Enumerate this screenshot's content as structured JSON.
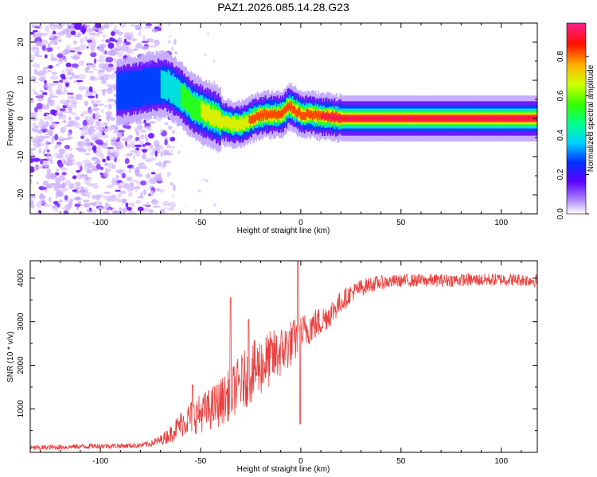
{
  "figure_title": "PAZ1.2026.085.14.28.G23",
  "colors": {
    "snr_line": "#e8413f",
    "ridge_low": "#5a00ff",
    "ridge_high": "#ff3030",
    "speckle": "#b98cff"
  },
  "chart_data": [
    {
      "type": "heatmap",
      "title": "PAZ1.2026.085.14.28.G23",
      "xlabel": "Height of straight line (km)",
      "ylabel": "Frequency (Hz)",
      "xlim": [
        -135,
        118
      ],
      "ylim": [
        -25,
        25
      ],
      "x_ticks": [
        -100,
        -50,
        0,
        50,
        100
      ],
      "y_ticks": [
        20,
        10,
        0,
        -10,
        -20
      ],
      "x_tick_labels": [
        "-100",
        "-50",
        "0",
        "50",
        "100"
      ],
      "y_tick_labels": [
        "20",
        "10",
        "0",
        "-10",
        "-20"
      ],
      "colorbar": {
        "label": "Normalized spectral amplitude",
        "range": [
          0,
          0.97
        ],
        "ticks": [
          0,
          0.2,
          0.4,
          0.6,
          0.8
        ],
        "tick_labels": [
          "0.0",
          "0.2",
          "0.4",
          "0.6",
          "0.8"
        ],
        "colormap": "rainbow (white-violet-blue-cyan-green-yellow-red-magenta)"
      },
      "ridge": {
        "description": "dominant spectral peak frequency vs height",
        "x": [
          -92,
          -85,
          -80,
          -75,
          -70,
          -66,
          -62,
          -58,
          -54,
          -50,
          -46,
          -42,
          -38,
          -34,
          -30,
          -26,
          -22,
          -18,
          -14,
          -10,
          -8,
          -6,
          -3,
          0,
          5,
          10,
          15,
          20,
          30,
          40,
          50,
          60,
          70,
          80,
          90,
          100,
          110,
          118
        ],
        "freq": [
          7,
          7.5,
          8,
          8.5,
          9,
          8.5,
          7,
          5,
          3,
          2,
          1,
          0,
          -1,
          -1.5,
          -1.5,
          -0.5,
          0.5,
          1,
          1,
          1,
          2,
          3.5,
          2,
          1,
          1,
          0.5,
          0.5,
          0,
          0,
          0,
          0,
          0,
          0,
          0,
          0,
          0,
          0,
          0
        ],
        "amplitude": [
          0.3,
          0.3,
          0.3,
          0.35,
          0.4,
          0.45,
          0.5,
          0.6,
          0.65,
          0.7,
          0.75,
          0.8,
          0.8,
          0.8,
          0.8,
          0.85,
          0.85,
          0.9,
          0.9,
          0.9,
          0.9,
          0.9,
          0.9,
          0.9,
          0.9,
          0.95,
          0.95,
          0.95,
          0.95,
          0.95,
          0.95,
          0.95,
          0.95,
          0.95,
          0.95,
          0.95,
          0.95,
          0.95
        ]
      },
      "noise_region": {
        "x_range": [
          -135,
          -70
        ],
        "freq_range": [
          -25,
          25
        ],
        "amplitude_range": [
          0.05,
          0.3
        ]
      }
    },
    {
      "type": "line",
      "title": "",
      "xlabel": "Height of straight line (km)",
      "ylabel": "SNR (10 * v/v)",
      "xlim": [
        -135,
        118
      ],
      "ylim": [
        0,
        4400
      ],
      "x_ticks": [
        -100,
        -50,
        0,
        50,
        100
      ],
      "y_ticks": [
        1000,
        2000,
        3000,
        4000
      ],
      "x_tick_labels": [
        "-100",
        "-50",
        "0",
        "50",
        "100"
      ],
      "y_tick_labels": [
        "1000",
        "2000",
        "3000",
        "4000"
      ],
      "series": [
        {
          "name": "SNR",
          "x": [
            -135,
            -120,
            -100,
            -90,
            -80,
            -75,
            -70,
            -65,
            -60,
            -55,
            -50,
            -45,
            -40,
            -35,
            -30,
            -25,
            -20,
            -15,
            -10,
            -5,
            -2,
            0,
            5,
            10,
            15,
            20,
            25,
            30,
            35,
            40,
            45,
            50,
            60,
            70,
            80,
            90,
            100,
            110,
            118
          ],
          "values": [
            100,
            120,
            150,
            150,
            160,
            200,
            280,
            420,
            650,
            800,
            900,
            1000,
            1150,
            1350,
            1600,
            1800,
            2000,
            2150,
            2300,
            2500,
            2600,
            2700,
            2900,
            3000,
            3200,
            3450,
            3650,
            3780,
            3860,
            3900,
            3920,
            3940,
            3950,
            3950,
            3960,
            3960,
            3970,
            3960,
            3950
          ],
          "spikes": [
            {
              "x": -1.5,
              "value": 4400
            },
            {
              "x": -0.3,
              "value": 650
            },
            {
              "x": -35,
              "value": 3550
            },
            {
              "x": -54,
              "value": 1550
            },
            {
              "x": -26,
              "value": 3050
            }
          ],
          "noise_amplitude": [
            60,
            60,
            60,
            60,
            60,
            80,
            120,
            200,
            300,
            400,
            450,
            500,
            550,
            600,
            650,
            700,
            700,
            650,
            600,
            550,
            500,
            450,
            400,
            350,
            300,
            260,
            220,
            200,
            180,
            160,
            150,
            150,
            150,
            150,
            150,
            150,
            150,
            150,
            150
          ]
        }
      ]
    }
  ]
}
